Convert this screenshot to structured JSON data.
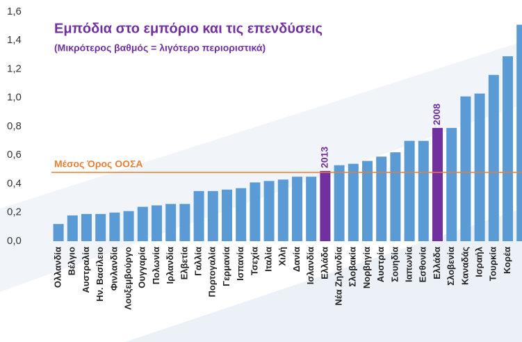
{
  "chart_data": {
    "type": "bar",
    "title": "Εμπόδια στο εμπόριο και τις επενδύσεις",
    "subtitle": "(Μικρότερος βαθμός = λιγότερο περιοριστικά)",
    "categories": [
      "Ολλανδία",
      "Βέλγιο",
      "Αυστραλία",
      "Ην. Βασίλειο",
      "Φινλανδία",
      "Λουξεμβούργο",
      "Ουγγαρία",
      "Πολωνία",
      "Ιρλανδία",
      "Ελβετία",
      "Γαλλία",
      "Πορτογαλία",
      "Γερμανία",
      "Ισπανία",
      "Τσεχία",
      "Ιταλία",
      "Χιλή",
      "Δανία",
      "Ισλανδία",
      "Ελλάδα",
      "Νέα Ζηλανδία",
      "Σλοβακία",
      "Νορβηγία",
      "Αυστρία",
      "Σουηδία",
      "Ιαπωνία",
      "Εσθονία",
      "Ελλάδα",
      "Σλοβενία",
      "Καναδάς",
      "Ισραήλ",
      "Τουρκία",
      "Κορέα",
      null
    ],
    "values": [
      0.12,
      0.18,
      0.19,
      0.19,
      0.2,
      0.21,
      0.24,
      0.25,
      0.26,
      0.26,
      0.35,
      0.35,
      0.36,
      0.37,
      0.41,
      0.42,
      0.43,
      0.45,
      0.45,
      0.49,
      0.53,
      0.54,
      0.56,
      0.59,
      0.62,
      0.7,
      0.7,
      0.79,
      0.79,
      1.01,
      1.03,
      1.16,
      1.29,
      1.51
    ],
    "colors": [
      "#5b9bd5",
      "#5b9bd5",
      "#5b9bd5",
      "#5b9bd5",
      "#5b9bd5",
      "#5b9bd5",
      "#5b9bd5",
      "#5b9bd5",
      "#5b9bd5",
      "#5b9bd5",
      "#5b9bd5",
      "#5b9bd5",
      "#5b9bd5",
      "#5b9bd5",
      "#5b9bd5",
      "#5b9bd5",
      "#5b9bd5",
      "#5b9bd5",
      "#5b9bd5",
      "#7030a0",
      "#5b9bd5",
      "#5b9bd5",
      "#5b9bd5",
      "#5b9bd5",
      "#5b9bd5",
      "#5b9bd5",
      "#5b9bd5",
      "#7030a0",
      "#5b9bd5",
      "#5b9bd5",
      "#5b9bd5",
      "#5b9bd5",
      "#5b9bd5",
      "#5b9bd5"
    ],
    "annotations": [
      {
        "text": "2013",
        "category_index": 19
      },
      {
        "text": "2008",
        "category_index": 27
      }
    ],
    "reference_line": {
      "label": "Μέσος Όρος ΟΟΣΑ",
      "value": 0.48,
      "color": "#ed7d31"
    },
    "ylim": [
      0,
      1.6
    ],
    "yticks": [
      {
        "value": 0,
        "label": "0,0"
      },
      {
        "value": 0.2,
        "label": "0,2"
      },
      {
        "value": 0.4,
        "label": "0,4"
      },
      {
        "value": 0.6,
        "label": "0,6"
      },
      {
        "value": 0.8,
        "label": "0,8"
      },
      {
        "value": 1.0,
        "label": "1,0"
      },
      {
        "value": 1.2,
        "label": "1,2"
      },
      {
        "value": 1.4,
        "label": "1,4"
      },
      {
        "value": 1.6,
        "label": "1,6"
      }
    ],
    "grid": false
  }
}
